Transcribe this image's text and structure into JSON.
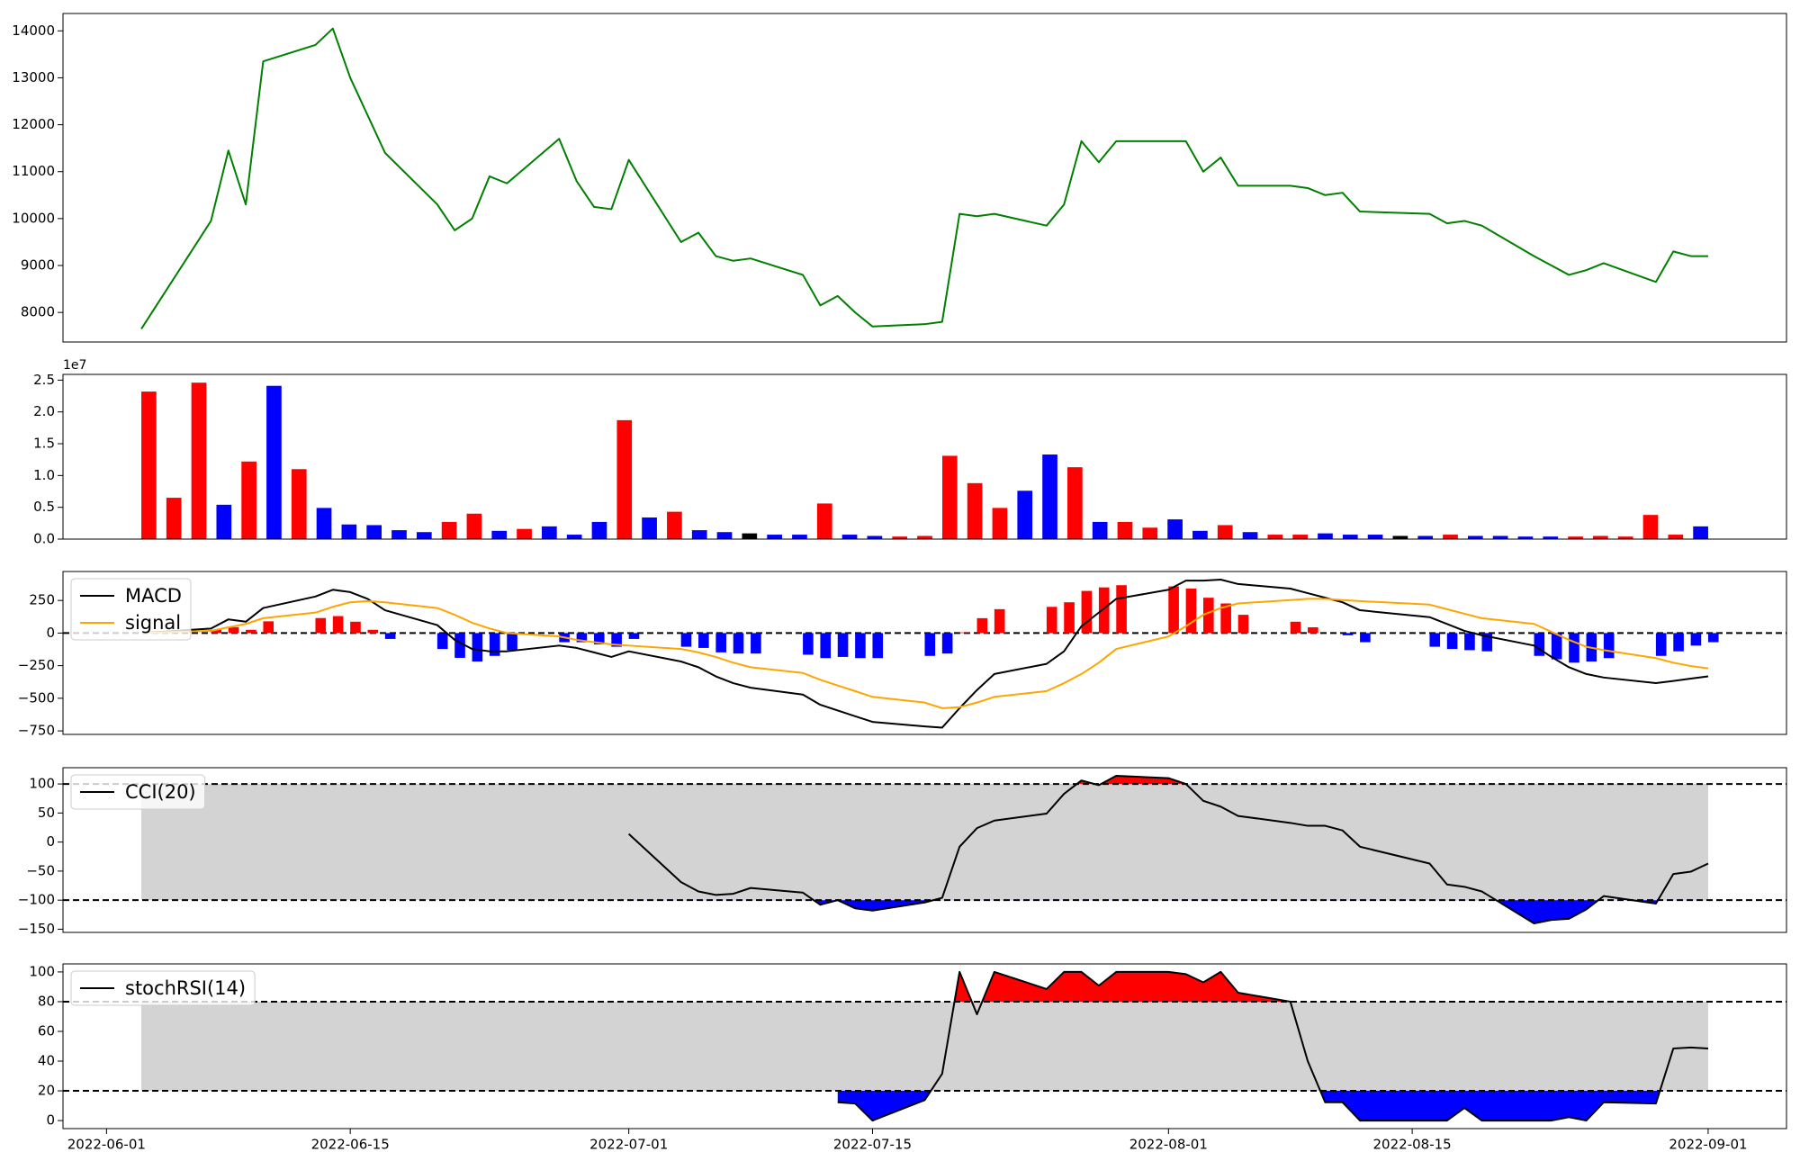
{
  "chart_data": [
    {
      "type": "line",
      "x": [
        "2022-06-03",
        "2022-06-07",
        "2022-06-08",
        "2022-06-09",
        "2022-06-10",
        "2022-06-13",
        "2022-06-14",
        "2022-06-15",
        "2022-06-16",
        "2022-06-17",
        "2022-06-20",
        "2022-06-21",
        "2022-06-22",
        "2022-06-23",
        "2022-06-24",
        "2022-06-27",
        "2022-06-28",
        "2022-06-29",
        "2022-06-30",
        "2022-07-01",
        "2022-07-04",
        "2022-07-05",
        "2022-07-06",
        "2022-07-07",
        "2022-07-08",
        "2022-07-11",
        "2022-07-12",
        "2022-07-13",
        "2022-07-14",
        "2022-07-15",
        "2022-07-18",
        "2022-07-19",
        "2022-07-20",
        "2022-07-21",
        "2022-07-22",
        "2022-07-25",
        "2022-07-26",
        "2022-07-27",
        "2022-07-28",
        "2022-07-29",
        "2022-08-01",
        "2022-08-02",
        "2022-08-03",
        "2022-08-04",
        "2022-08-05",
        "2022-08-08",
        "2022-08-09",
        "2022-08-10",
        "2022-08-11",
        "2022-08-12",
        "2022-08-16",
        "2022-08-17",
        "2022-08-18",
        "2022-08-19",
        "2022-08-22",
        "2022-08-23",
        "2022-08-24",
        "2022-08-25",
        "2022-08-26",
        "2022-08-29",
        "2022-08-30",
        "2022-08-31",
        "2022-09-01"
      ],
      "xlim": [
        "2022-05-29T12:00:00Z",
        "2022-09-05T12:00:00Z"
      ],
      "series": [
        {
          "color": "#008000",
          "values": [
            7650,
            9950,
            11450,
            10300,
            13350,
            13700,
            14050,
            13000,
            12200,
            11400,
            10300,
            9750,
            10000,
            10900,
            10750,
            11700,
            10800,
            10250,
            10200,
            11250,
            9500,
            9700,
            9200,
            9100,
            9150,
            8800,
            8150,
            8350,
            8000,
            7700,
            7750,
            7800,
            10100,
            10050,
            10100,
            9850,
            10300,
            11650,
            11200,
            11650,
            11650,
            11650,
            11000,
            11300,
            10700,
            10700,
            10650,
            10500,
            10550,
            10150,
            10100,
            9900,
            9950,
            9850,
            9200,
            9000,
            8800,
            8900,
            9050,
            8650,
            9300,
            9200,
            9200
          ]
        }
      ],
      "ylim": [
        7370,
        14370
      ],
      "yticks": [
        8000,
        9000,
        10000,
        11000,
        12000,
        13000,
        14000
      ]
    },
    {
      "type": "bar",
      "values": [
        23200000,
        6500000,
        24600000,
        5400000,
        12200000,
        24100000,
        11000000,
        4900000,
        2300000,
        2200000,
        1400000,
        1100000,
        2700000,
        4000000,
        1300000,
        1600000,
        2000000,
        700000,
        2700000,
        18700000,
        3400000,
        4300000,
        1400000,
        1100000,
        900000,
        700000,
        700000,
        5600000,
        700000,
        500000,
        400000,
        500000,
        13100000,
        8800000,
        4900000,
        7600000,
        13300000,
        11300000,
        2700000,
        2700000,
        1800000,
        3100000,
        1300000,
        2200000,
        1100000,
        700000,
        700000,
        900000,
        700000,
        700000,
        500000,
        500000,
        700000,
        500000,
        500000,
        400000,
        400000,
        400000,
        500000,
        400000,
        3800000,
        700000,
        2000000
      ],
      "colors": [
        "red",
        "red",
        "red",
        "blue",
        "red",
        "blue",
        "red",
        "blue",
        "blue",
        "blue",
        "blue",
        "blue",
        "red",
        "red",
        "blue",
        "red",
        "blue",
        "blue",
        "blue",
        "red",
        "blue",
        "red",
        "blue",
        "blue",
        "black",
        "blue",
        "blue",
        "red",
        "blue",
        "blue",
        "red",
        "red",
        "red",
        "red",
        "red",
        "blue",
        "blue",
        "red",
        "blue",
        "red",
        "red",
        "blue",
        "blue",
        "red",
        "blue",
        "red",
        "red",
        "blue",
        "blue",
        "blue",
        "black",
        "blue",
        "red",
        "blue",
        "blue",
        "blue",
        "blue",
        "red",
        "red",
        "red",
        "red",
        "red",
        "blue"
      ],
      "ylim": [
        0,
        25900000
      ],
      "yticks": [
        {
          "value": 0,
          "label": "0.0"
        },
        {
          "value": 5000000,
          "label": "0.5"
        },
        {
          "value": 10000000,
          "label": "1.0"
        },
        {
          "value": 15000000,
          "label": "1.5"
        },
        {
          "value": 20000000,
          "label": "2.0"
        },
        {
          "value": 25000000,
          "label": "2.5"
        }
      ],
      "offset_label": "1e7"
    },
    {
      "type": "line",
      "x": [
        "2022-06-03",
        "2022-06-07",
        "2022-06-08",
        "2022-06-09",
        "2022-06-10",
        "2022-06-13",
        "2022-06-14",
        "2022-06-15",
        "2022-06-16",
        "2022-06-17",
        "2022-06-20",
        "2022-06-21",
        "2022-06-22",
        "2022-06-23",
        "2022-06-24",
        "2022-06-27",
        "2022-06-28",
        "2022-06-29",
        "2022-06-30",
        "2022-07-01",
        "2022-07-04",
        "2022-07-05",
        "2022-07-06",
        "2022-07-07",
        "2022-07-08",
        "2022-07-11",
        "2022-07-12",
        "2022-07-13",
        "2022-07-14",
        "2022-07-15",
        "2022-07-18",
        "2022-07-19",
        "2022-07-20",
        "2022-07-21",
        "2022-07-22",
        "2022-07-25",
        "2022-07-26",
        "2022-07-27",
        "2022-07-28",
        "2022-07-29",
        "2022-08-01",
        "2022-08-02",
        "2022-08-03",
        "2022-08-04",
        "2022-08-05",
        "2022-08-08",
        "2022-08-09",
        "2022-08-10",
        "2022-08-11",
        "2022-08-12",
        "2022-08-16",
        "2022-08-17",
        "2022-08-18",
        "2022-08-19",
        "2022-08-22",
        "2022-08-23",
        "2022-08-24",
        "2022-08-25",
        "2022-08-26",
        "2022-08-29",
        "2022-08-30",
        "2022-08-31",
        "2022-09-01"
      ],
      "xlim": [
        "2022-05-29T12:00:00Z",
        "2022-09-05T12:00:00Z"
      ],
      "series": [
        {
          "name": "MACD",
          "color": "black",
          "values": [
            0,
            35,
            105,
            87,
            192,
            280,
            332,
            314,
            262,
            175,
            61,
            -52,
            -122,
            -140,
            -140,
            -96,
            -114,
            -148,
            -183,
            -140,
            -218,
            -262,
            -332,
            -384,
            -419,
            -472,
            -550,
            -594,
            -638,
            -681,
            -716,
            -725,
            -576,
            -437,
            -314,
            -236,
            -140,
            52,
            157,
            262,
            332,
            402,
            402,
            410,
            376,
            341,
            306,
            271,
            236,
            175,
            122,
            70,
            17,
            -17,
            -96,
            -183,
            -262,
            -314,
            -341,
            -384,
            -367,
            -349,
            -332
          ]
        },
        {
          "name": "signal",
          "color": "orange",
          "values": [
            0,
            17,
            44,
            70,
            114,
            157,
            201,
            236,
            245,
            236,
            192,
            140,
            79,
            35,
            0,
            -26,
            -52,
            -70,
            -87,
            -96,
            -122,
            -148,
            -183,
            -227,
            -262,
            -306,
            -358,
            -402,
            -445,
            -489,
            -533,
            -576,
            -568,
            -533,
            -489,
            -445,
            -384,
            -314,
            -227,
            -122,
            -26,
            52,
            140,
            192,
            227,
            253,
            262,
            262,
            253,
            245,
            218,
            183,
            148,
            114,
            70,
            9,
            -52,
            -105,
            -131,
            -192,
            -227,
            -253,
            -271
          ]
        }
      ],
      "histogram": {
        "up_color": "red",
        "down_color": "blue",
        "values": [
          0,
          25,
          45,
          25,
          90,
          115,
          130,
          87,
          25,
          -45,
          -122,
          -190,
          -218,
          -175,
          -131,
          -70,
          -70,
          -87,
          -105,
          -45,
          -105,
          -114,
          -148,
          -157,
          -157,
          -166,
          -192,
          -183,
          -192,
          -192,
          -175,
          -157,
          5,
          114,
          183,
          201,
          236,
          323,
          350,
          367,
          358,
          341,
          271,
          227,
          140,
          87,
          44,
          0,
          -17,
          -70,
          -105,
          -122,
          -131,
          -140,
          -175,
          -201,
          -227,
          -218,
          -192,
          -175,
          -140,
          -96,
          -70
        ]
      },
      "hlines": [
        {
          "value": 0
        }
      ],
      "ylim": [
        -777,
        472
      ],
      "yticks": [
        250,
        0,
        {
          "value": -250,
          "label": "−250"
        },
        {
          "value": -500,
          "label": "−500"
        },
        {
          "value": -750,
          "label": "−750"
        }
      ],
      "legend": "upper left"
    },
    {
      "type": "line",
      "x": [
        "2022-06-03",
        "2022-06-07",
        "2022-06-08",
        "2022-06-09",
        "2022-06-10",
        "2022-06-13",
        "2022-06-14",
        "2022-06-15",
        "2022-06-16",
        "2022-06-17",
        "2022-06-20",
        "2022-06-21",
        "2022-06-22",
        "2022-06-23",
        "2022-06-24",
        "2022-06-27",
        "2022-06-28",
        "2022-06-29",
        "2022-06-30",
        "2022-07-01",
        "2022-07-04",
        "2022-07-05",
        "2022-07-06",
        "2022-07-07",
        "2022-07-08",
        "2022-07-11",
        "2022-07-12",
        "2022-07-13",
        "2022-07-14",
        "2022-07-15",
        "2022-07-18",
        "2022-07-19",
        "2022-07-20",
        "2022-07-21",
        "2022-07-22",
        "2022-07-25",
        "2022-07-26",
        "2022-07-27",
        "2022-07-28",
        "2022-07-29",
        "2022-08-01",
        "2022-08-02",
        "2022-08-03",
        "2022-08-04",
        "2022-08-05",
        "2022-08-08",
        "2022-08-09",
        "2022-08-10",
        "2022-08-11",
        "2022-08-12",
        "2022-08-16",
        "2022-08-17",
        "2022-08-18",
        "2022-08-19",
        "2022-08-22",
        "2022-08-23",
        "2022-08-24",
        "2022-08-25",
        "2022-08-26",
        "2022-08-29",
        "2022-08-30",
        "2022-08-31",
        "2022-09-01"
      ],
      "xlim": [
        "2022-05-29T12:00:00Z",
        "2022-09-05T12:00:00Z"
      ],
      "series": [
        {
          "name": "CCI(20)",
          "color": "black",
          "values": [
            null,
            null,
            null,
            null,
            null,
            null,
            null,
            null,
            null,
            null,
            null,
            null,
            null,
            null,
            null,
            null,
            null,
            null,
            null,
            14,
            -69,
            -85,
            -91,
            -89,
            -79,
            -87,
            -108,
            -100,
            -114,
            -118,
            -104,
            -96,
            -8,
            24,
            37,
            49,
            83,
            106,
            98,
            114,
            110,
            100,
            71,
            61,
            45,
            33,
            28,
            28,
            20,
            -8,
            -37,
            -73,
            -77,
            -85,
            -140,
            -134,
            -132,
            -116,
            -93,
            -106,
            -55,
            -51,
            -37
          ]
        }
      ],
      "band": [
        -100,
        100
      ],
      "band_color": "lightgray",
      "hlines": [
        {
          "value": 100,
          "fill": "above",
          "fill_color": "red"
        },
        {
          "value": -100,
          "fill": "below",
          "fill_color": "blue"
        }
      ],
      "ylim": [
        -155.5,
        128
      ],
      "yticks": [
        100,
        50,
        0,
        {
          "value": -50,
          "label": "−50"
        },
        {
          "value": -100,
          "label": "−100"
        },
        {
          "value": -150,
          "label": "−150"
        }
      ],
      "legend": "upper left"
    },
    {
      "type": "line",
      "x": [
        "2022-06-03",
        "2022-06-07",
        "2022-06-08",
        "2022-06-09",
        "2022-06-10",
        "2022-06-13",
        "2022-06-14",
        "2022-06-15",
        "2022-06-16",
        "2022-06-17",
        "2022-06-20",
        "2022-06-21",
        "2022-06-22",
        "2022-06-23",
        "2022-06-24",
        "2022-06-27",
        "2022-06-28",
        "2022-06-29",
        "2022-06-30",
        "2022-07-01",
        "2022-07-04",
        "2022-07-05",
        "2022-07-06",
        "2022-07-07",
        "2022-07-08",
        "2022-07-11",
        "2022-07-12",
        "2022-07-13",
        "2022-07-14",
        "2022-07-15",
        "2022-07-18",
        "2022-07-19",
        "2022-07-20",
        "2022-07-21",
        "2022-07-22",
        "2022-07-25",
        "2022-07-26",
        "2022-07-27",
        "2022-07-28",
        "2022-07-29",
        "2022-08-01",
        "2022-08-02",
        "2022-08-03",
        "2022-08-04",
        "2022-08-05",
        "2022-08-08",
        "2022-08-09",
        "2022-08-10",
        "2022-08-11",
        "2022-08-12",
        "2022-08-16",
        "2022-08-17",
        "2022-08-18",
        "2022-08-19",
        "2022-08-22",
        "2022-08-23",
        "2022-08-24",
        "2022-08-25",
        "2022-08-26",
        "2022-08-29",
        "2022-08-30",
        "2022-08-31",
        "2022-09-01"
      ],
      "xlim": [
        "2022-05-29T12:00:00Z",
        "2022-09-05T12:00:00Z"
      ],
      "xticks": [
        "2022-06-01",
        "2022-06-15",
        "2022-07-01",
        "2022-07-15",
        "2022-08-01",
        "2022-08-15",
        "2022-09-01"
      ],
      "series": [
        {
          "name": "stochRSI(14)",
          "color": "black",
          "values": [
            null,
            null,
            null,
            null,
            null,
            null,
            null,
            null,
            null,
            null,
            null,
            null,
            null,
            null,
            null,
            null,
            null,
            null,
            null,
            null,
            null,
            null,
            null,
            null,
            null,
            null,
            null,
            12.3,
            11.5,
            0,
            13.8,
            31.5,
            100,
            71.5,
            100,
            88.5,
            100,
            100,
            90.8,
            100,
            100,
            98.5,
            93,
            100,
            86,
            80,
            40,
            12.3,
            12.3,
            0,
            0,
            0,
            8.5,
            0,
            0,
            0,
            2.3,
            0,
            12.3,
            11.5,
            48.5,
            49.2,
            48.5
          ]
        }
      ],
      "band": [
        20,
        80
      ],
      "band_color": "lightgray",
      "hlines": [
        {
          "value": 80,
          "fill": "above",
          "fill_color": "red"
        },
        {
          "value": 20,
          "fill": "below",
          "fill_color": "blue"
        }
      ],
      "ylim": [
        -5.4,
        105.4
      ],
      "yticks": [
        0,
        20,
        40,
        60,
        80,
        100
      ],
      "legend": "upper left"
    }
  ]
}
